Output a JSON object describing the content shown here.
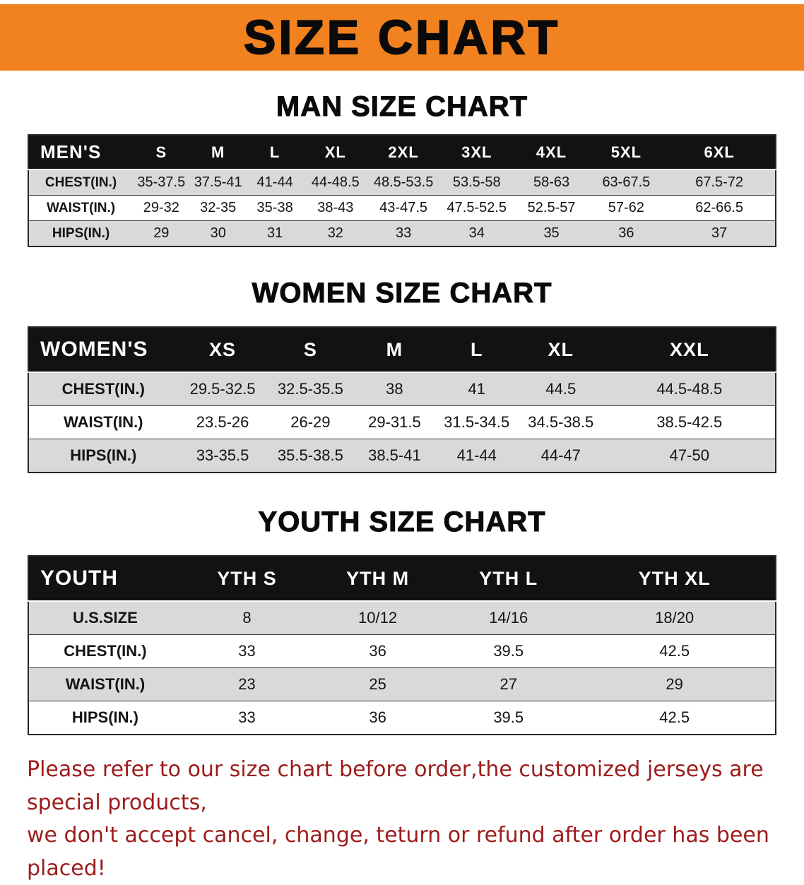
{
  "banner": {
    "title": "SIZE CHART",
    "bg_color": "#F28220",
    "text_color": "#0A0A0A"
  },
  "sections": [
    {
      "heading": "MAN SIZE CHART",
      "table": {
        "header": [
          "MEN'S",
          "S",
          "M",
          "L",
          "XL",
          "2XL",
          "3XL",
          "4XL",
          "5XL",
          "6XL"
        ],
        "rows": [
          [
            "CHEST(IN.)",
            "35-37.5",
            "37.5-41",
            "41-44",
            "44-48.5",
            "48.5-53.5",
            "53.5-58",
            "58-63",
            "63-67.5",
            "67.5-72"
          ],
          [
            "WAIST(IN.)",
            "29-32",
            "32-35",
            "35-38",
            "38-43",
            "43-47.5",
            "47.5-52.5",
            "52.5-57",
            "57-62",
            "62-66.5"
          ],
          [
            "HIPS(IN.)",
            "29",
            "30",
            "31",
            "32",
            "33",
            "34",
            "35",
            "36",
            "37"
          ]
        ]
      }
    },
    {
      "heading": "WOMEN SIZE CHART",
      "table": {
        "header": [
          "WOMEN'S",
          "XS",
          "S",
          "M",
          "L",
          "XL",
          "XXL"
        ],
        "rows": [
          [
            "CHEST(IN.)",
            "29.5-32.5",
            "32.5-35.5",
            "38",
            "41",
            "44.5",
            "44.5-48.5"
          ],
          [
            "WAIST(IN.)",
            "23.5-26",
            "26-29",
            "29-31.5",
            "31.5-34.5",
            "34.5-38.5",
            "38.5-42.5"
          ],
          [
            "HIPS(IN.)",
            "33-35.5",
            "35.5-38.5",
            "38.5-41",
            "41-44",
            "44-47",
            "47-50"
          ]
        ]
      }
    },
    {
      "heading": "YOUTH SIZE CHART",
      "table": {
        "header": [
          "YOUTH",
          "YTH S",
          "YTH M",
          "YTH L",
          "YTH XL"
        ],
        "rows": [
          [
            "U.S.SIZE",
            "8",
            "10/12",
            "14/16",
            "18/20"
          ],
          [
            "CHEST(IN.)",
            "33",
            "36",
            "39.5",
            "42.5"
          ],
          [
            "WAIST(IN.)",
            "23",
            "25",
            "27",
            "29"
          ],
          [
            "HIPS(IN.)",
            "33",
            "36",
            "39.5",
            "42.5"
          ]
        ]
      }
    }
  ],
  "footer": {
    "lines": [
      "Please refer to our size chart before order,the customized jerseys are special products,",
      "we don't accept cancel, change, teturn or refund after order has been placed!"
    ],
    "color": "#9E1B1B"
  }
}
